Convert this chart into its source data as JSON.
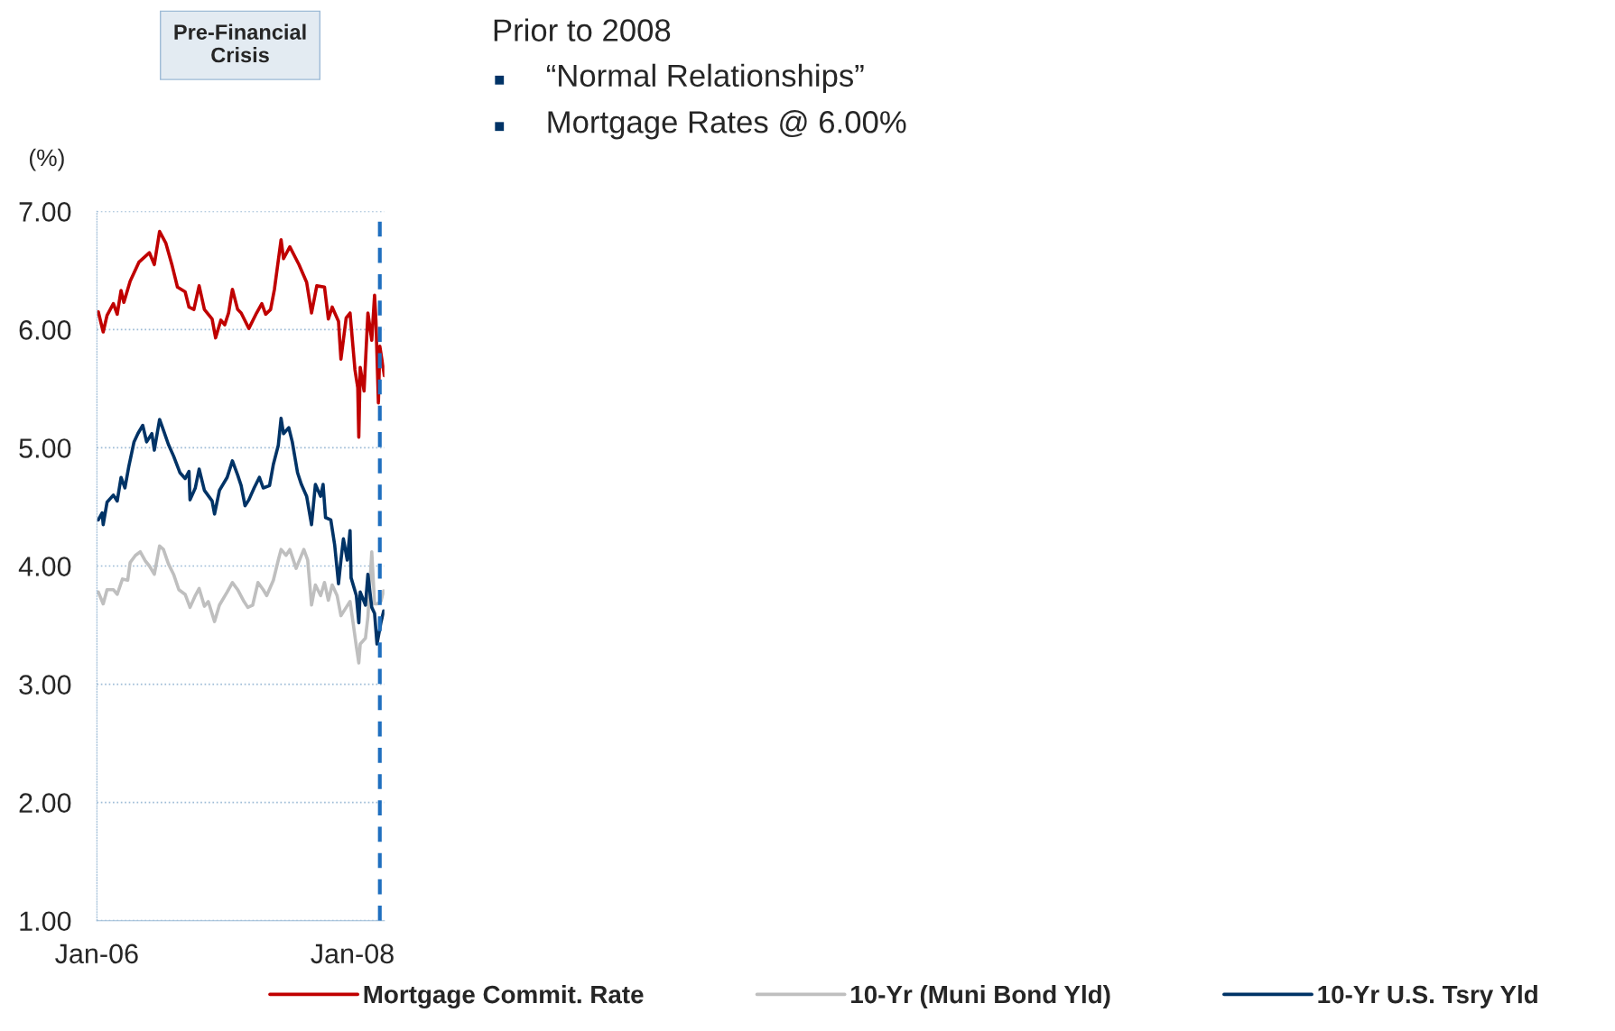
{
  "chart_data": {
    "type": "line",
    "ylabel": "(%)",
    "annotations": [
      "Pre-Financial\nCrisis",
      "Prior to 2008",
      "“Normal Relationships”",
      "Mortgage Rates @ 6.00%"
    ],
    "xlim": [
      "2006-01-01",
      "2008-04-01"
    ],
    "xticks": [
      {
        "value": "2006-01",
        "label": "Jan-06"
      },
      {
        "value": "2008-01",
        "label": "Jan-08"
      }
    ],
    "ylim": [
      1,
      7
    ],
    "yticks": [
      {
        "value": 1,
        "label": "1.00"
      },
      {
        "value": 2,
        "label": "2.00"
      },
      {
        "value": 3,
        "label": "3.00"
      },
      {
        "value": 4,
        "label": "4.00"
      },
      {
        "value": 5,
        "label": "5.00"
      },
      {
        "value": 6,
        "label": "6.00"
      },
      {
        "value": 7,
        "label": "7.00"
      }
    ],
    "grid": "y",
    "legend": "bottom",
    "marker": "none",
    "line_style": "solid",
    "ref_lines": [
      {
        "axis": "x",
        "value": "2008-03-19",
        "color": "#1f6fbf",
        "line_style": "dashed"
      }
    ],
    "series": [
      {
        "name": "Mortgage Commit. Rate",
        "color": "#c00000",
        "x": [
          "2006-01-05",
          "2006-01-19",
          "2006-01-30",
          "2006-02-17",
          "2006-02-28",
          "2006-03-11",
          "2006-03-19",
          "2006-04-06",
          "2006-05-01",
          "2006-05-31",
          "2006-06-14",
          "2006-06-29",
          "2006-07-17",
          "2006-08-04",
          "2006-08-19",
          "2006-09-10",
          "2006-09-21",
          "2006-10-05",
          "2006-10-20",
          "2006-11-04",
          "2006-11-26",
          "2006-12-06",
          "2006-12-21",
          "2007-01-01",
          "2007-01-12",
          "2007-01-23",
          "2007-02-07",
          "2007-02-17",
          "2007-03-11",
          "2007-04-02",
          "2007-04-17",
          "2007-04-28",
          "2007-05-12",
          "2007-05-23",
          "2007-06-11",
          "2007-06-18",
          "2007-07-06",
          "2007-08-01",
          "2007-08-23",
          "2007-09-06",
          "2007-09-21",
          "2007-10-13",
          "2007-10-24",
          "2007-11-04",
          "2007-11-22",
          "2007-11-29",
          "2007-12-14",
          "2007-12-25",
          "2008-01-08",
          "2008-01-16",
          "2008-01-19",
          "2008-01-23",
          "2008-02-03",
          "2008-02-14",
          "2008-02-25",
          "2008-03-04",
          "2008-03-08",
          "2008-03-15",
          "2008-03-19",
          "2008-04-01"
        ],
        "values": [
          6.15,
          5.98,
          6.12,
          6.22,
          6.13,
          6.33,
          6.23,
          6.41,
          6.57,
          6.65,
          6.55,
          6.83,
          6.73,
          6.54,
          6.36,
          6.32,
          6.19,
          6.17,
          6.37,
          6.17,
          6.09,
          5.93,
          6.08,
          6.04,
          6.14,
          6.34,
          6.17,
          6.14,
          6.01,
          6.14,
          6.22,
          6.13,
          6.17,
          6.34,
          6.76,
          6.6,
          6.7,
          6.55,
          6.4,
          6.14,
          6.37,
          6.36,
          6.09,
          6.19,
          6.07,
          5.75,
          6.1,
          6.14,
          5.66,
          5.51,
          5.09,
          5.68,
          5.48,
          6.14,
          5.91,
          6.29,
          6.07,
          5.38,
          5.86,
          5.61
        ]
      },
      {
        "name": "10-Yr (Muni Bond Yld)",
        "color": "#bfbfbf",
        "x": [
          "2006-01-05",
          "2006-01-19",
          "2006-01-30",
          "2006-02-17",
          "2006-02-28",
          "2006-03-15",
          "2006-03-30",
          "2006-04-06",
          "2006-04-21",
          "2006-05-05",
          "2006-05-20",
          "2006-05-31",
          "2006-06-14",
          "2006-06-29",
          "2006-07-10",
          "2006-07-24",
          "2006-08-08",
          "2006-08-23",
          "2006-09-10",
          "2006-09-24",
          "2006-10-09",
          "2006-10-20",
          "2006-11-04",
          "2006-11-15",
          "2006-12-03",
          "2006-12-17",
          "2007-01-08",
          "2007-01-23",
          "2007-02-07",
          "2007-02-25",
          "2007-03-08",
          "2007-03-22",
          "2007-04-06",
          "2007-04-21",
          "2007-05-01",
          "2007-05-20",
          "2007-06-03",
          "2007-06-11",
          "2007-06-25",
          "2007-07-06",
          "2007-07-24",
          "2007-08-15",
          "2007-08-26",
          "2007-09-06",
          "2007-09-17",
          "2007-10-02",
          "2007-10-13",
          "2007-10-24",
          "2007-11-04",
          "2007-11-18",
          "2007-11-29",
          "2007-12-14",
          "2007-12-25",
          "2008-01-05",
          "2008-01-12",
          "2008-01-19",
          "2008-01-23",
          "2008-02-07",
          "2008-02-14",
          "2008-02-25",
          "2008-03-04",
          "2008-03-11",
          "2008-03-22",
          "2008-03-30"
        ],
        "values": [
          3.78,
          3.68,
          3.8,
          3.8,
          3.76,
          3.89,
          3.88,
          4.03,
          4.09,
          4.12,
          4.04,
          4.0,
          3.93,
          4.17,
          4.14,
          4.02,
          3.93,
          3.8,
          3.76,
          3.65,
          3.75,
          3.81,
          3.66,
          3.7,
          3.53,
          3.67,
          3.78,
          3.86,
          3.8,
          3.7,
          3.65,
          3.67,
          3.86,
          3.8,
          3.75,
          3.88,
          4.05,
          4.14,
          4.09,
          4.14,
          3.98,
          4.14,
          4.05,
          3.67,
          3.84,
          3.75,
          3.86,
          3.71,
          3.84,
          3.75,
          3.58,
          3.65,
          3.7,
          3.47,
          3.32,
          3.18,
          3.34,
          3.39,
          3.57,
          4.12,
          3.68,
          3.68,
          3.7,
          3.79
        ]
      },
      {
        "name": "10-Yr U.S. Tsry Yld",
        "color": "#003366",
        "x": [
          "2006-01-05",
          "2006-01-16",
          "2006-01-19",
          "2006-01-30",
          "2006-02-17",
          "2006-02-28",
          "2006-03-11",
          "2006-03-22",
          "2006-04-02",
          "2006-04-17",
          "2006-04-28",
          "2006-05-12",
          "2006-05-23",
          "2006-06-07",
          "2006-06-14",
          "2006-06-29",
          "2006-07-10",
          "2006-07-24",
          "2006-08-08",
          "2006-08-26",
          "2006-09-10",
          "2006-09-21",
          "2006-09-24",
          "2006-10-09",
          "2006-10-20",
          "2006-11-04",
          "2006-11-26",
          "2006-12-03",
          "2006-12-17",
          "2007-01-08",
          "2007-01-23",
          "2007-02-07",
          "2007-02-17",
          "2007-02-28",
          "2007-03-11",
          "2007-03-26",
          "2007-04-10",
          "2007-04-21",
          "2007-05-09",
          "2007-05-20",
          "2007-06-03",
          "2007-06-11",
          "2007-06-18",
          "2007-07-03",
          "2007-07-13",
          "2007-07-28",
          "2007-08-08",
          "2007-08-23",
          "2007-09-06",
          "2007-09-17",
          "2007-10-02",
          "2007-10-09",
          "2007-10-16",
          "2007-10-31",
          "2007-11-11",
          "2007-11-22",
          "2007-11-29",
          "2007-12-06",
          "2007-12-17",
          "2007-12-25",
          "2007-12-28",
          "2008-01-12",
          "2008-01-19",
          "2008-01-23",
          "2008-02-07",
          "2008-02-14",
          "2008-02-25",
          "2008-03-04",
          "2008-03-11",
          "2008-03-22",
          "2008-03-30"
        ],
        "values": [
          4.39,
          4.45,
          4.35,
          4.54,
          4.6,
          4.55,
          4.75,
          4.66,
          4.84,
          5.05,
          5.12,
          5.19,
          5.05,
          5.12,
          4.98,
          5.24,
          5.15,
          5.03,
          4.93,
          4.79,
          4.74,
          4.8,
          4.56,
          4.66,
          4.82,
          4.64,
          4.55,
          4.44,
          4.64,
          4.75,
          4.89,
          4.77,
          4.68,
          4.51,
          4.56,
          4.66,
          4.75,
          4.66,
          4.68,
          4.86,
          5.02,
          5.25,
          5.12,
          5.17,
          5.05,
          4.79,
          4.69,
          4.59,
          4.35,
          4.69,
          4.59,
          4.69,
          4.41,
          4.39,
          4.18,
          3.85,
          4.05,
          4.23,
          4.05,
          4.3,
          3.9,
          3.75,
          3.52,
          3.78,
          3.67,
          3.93,
          3.65,
          3.6,
          3.34,
          3.52,
          3.62
        ]
      }
    ]
  }
}
